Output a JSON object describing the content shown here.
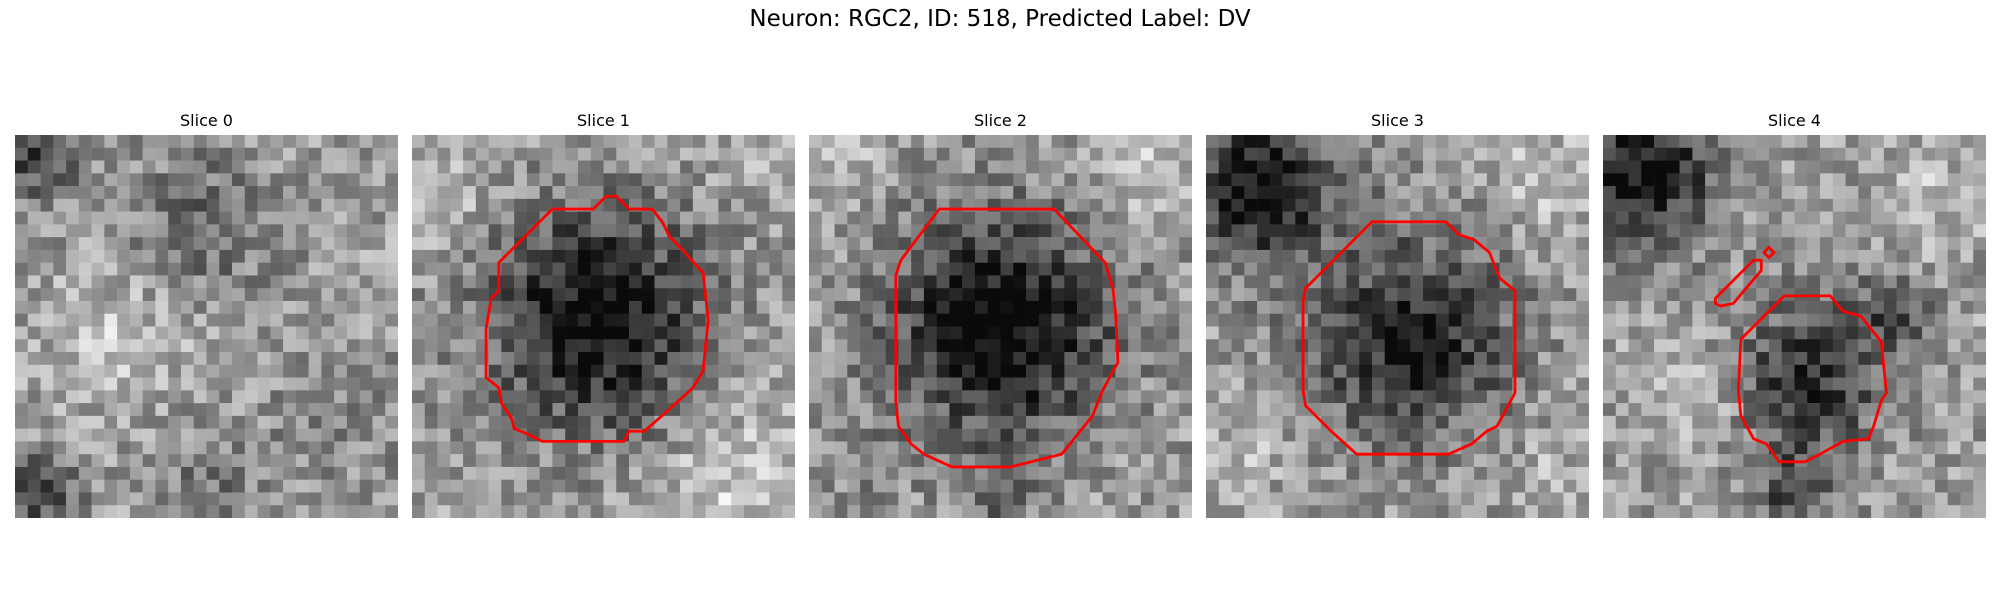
{
  "figure": {
    "title": "Neuron: RGC2, ID: 518, Predicted Label: DV"
  },
  "contour_color": "#ff0000",
  "panels": [
    {
      "label": "Slice 0",
      "has_contour": false
    },
    {
      "label": "Slice 1",
      "has_contour": true
    },
    {
      "label": "Slice 2",
      "has_contour": true
    },
    {
      "label": "Slice 3",
      "has_contour": true
    },
    {
      "label": "Slice 4",
      "has_contour": true
    }
  ]
}
